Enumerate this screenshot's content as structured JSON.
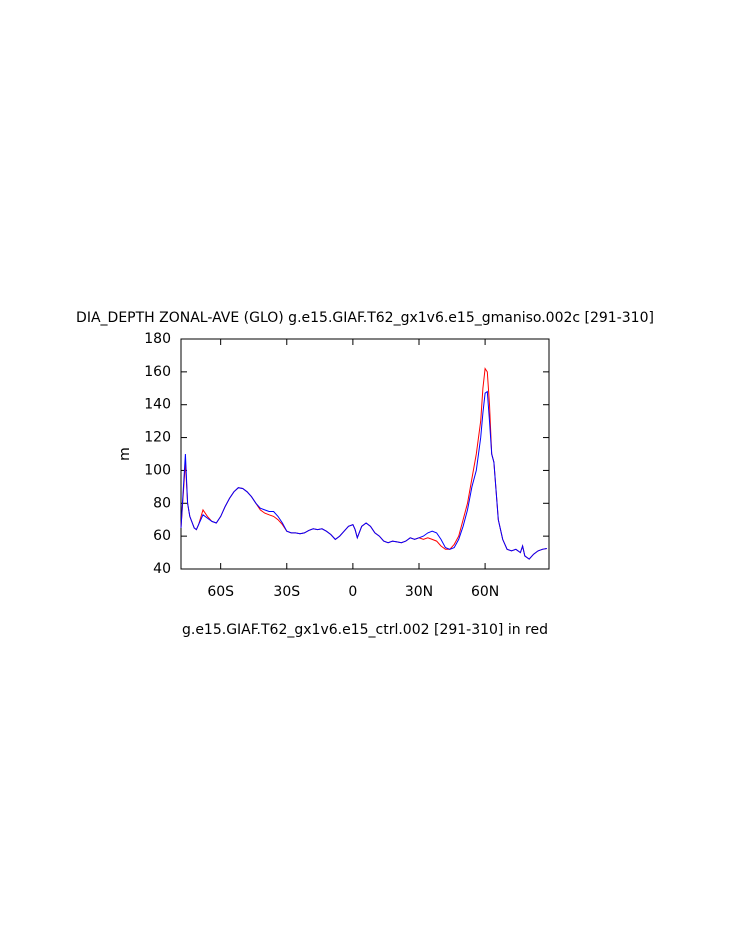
{
  "chart_data": {
    "type": "line",
    "title": "DIA_DEPTH ZONAL-AVE (GLO) g.e15.GIAF.T62_gx1v6.e15_gmaniso.002c [291-310]",
    "subtitle": "g.e15.GIAF.T62_gx1v6.e15_ctrl.002 [291-310] in red",
    "y_label": "m",
    "xlim": [
      -78,
      89
    ],
    "ylim": [
      40,
      180
    ],
    "xticks": [
      {
        "value": -60,
        "label": "60S"
      },
      {
        "value": -30,
        "label": "30S"
      },
      0,
      {
        "value": 30,
        "label": "30N"
      },
      {
        "value": 60,
        "label": "60N"
      }
    ],
    "yticks": [
      40,
      60,
      80,
      100,
      120,
      140,
      160,
      180
    ],
    "x": [
      -78,
      -76,
      -75,
      -74,
      -72,
      -71,
      -70,
      -68,
      -66,
      -64,
      -62,
      -60,
      -58,
      -56,
      -54,
      -52,
      -50,
      -48,
      -46,
      -44,
      -42,
      -40,
      -38,
      -36,
      -34,
      -32,
      -30,
      -28,
      -26,
      -24,
      -22,
      -20,
      -18,
      -16,
      -14,
      -12,
      -10,
      -8,
      -6,
      -4,
      -2,
      0,
      1,
      2,
      4,
      6,
      8,
      10,
      12,
      14,
      16,
      18,
      20,
      22,
      24,
      26,
      28,
      30,
      32,
      34,
      36,
      38,
      40,
      42,
      44,
      46,
      48,
      50,
      52,
      54,
      56,
      58,
      59,
      60,
      61,
      62,
      63,
      64,
      66,
      68,
      70,
      72,
      74,
      76,
      77,
      78,
      80,
      82,
      84,
      86,
      88
    ],
    "series": [
      {
        "name": "ctrl",
        "color": "#ff0000",
        "values": [
          65,
          105,
          80,
          72,
          65,
          64,
          67,
          76,
          72,
          69,
          68,
          72,
          78,
          83,
          87,
          89.5,
          89,
          87,
          84,
          80,
          76,
          74,
          73,
          72,
          70,
          67,
          63,
          62,
          62,
          61.5,
          62,
          63.5,
          64.5,
          64,
          64.5,
          63,
          61,
          58,
          60,
          63,
          66,
          67,
          64,
          59,
          66,
          68,
          66,
          62,
          60,
          57,
          56,
          57,
          56.5,
          56,
          57,
          59,
          58,
          59,
          58,
          59,
          58,
          57,
          54,
          52,
          52,
          55,
          60,
          70,
          80,
          95,
          110,
          130,
          150,
          162,
          160,
          140,
          110,
          105,
          70,
          58,
          52,
          51,
          52,
          50,
          54,
          48,
          46,
          49,
          51,
          52,
          52.5
        ]
      },
      {
        "name": "gmaniso",
        "color": "#0000ff",
        "values": [
          65,
          110,
          80,
          72,
          65,
          64,
          67,
          73,
          71,
          69,
          68,
          72,
          78,
          83,
          87,
          89.5,
          89,
          87,
          84,
          80,
          77,
          76,
          75,
          75,
          72,
          68,
          63,
          62,
          62,
          61.5,
          62,
          63.5,
          64.5,
          64,
          64.5,
          63,
          61,
          58,
          60,
          63,
          66,
          67,
          64,
          59,
          66,
          68,
          66,
          62,
          60,
          57,
          56,
          57,
          56.5,
          56,
          57,
          59,
          58,
          59,
          60,
          62,
          63,
          62,
          58,
          53,
          52,
          53,
          58,
          66,
          76,
          90,
          100,
          120,
          135,
          147,
          148,
          130,
          110,
          105,
          70,
          58,
          52,
          51,
          52,
          50,
          54,
          48,
          46,
          49,
          51,
          52,
          52.5
        ]
      }
    ]
  }
}
